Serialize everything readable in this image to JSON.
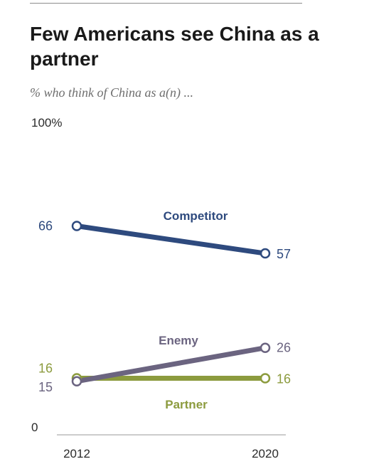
{
  "header": {
    "title": "Few Americans see China as a partner",
    "subtitle": "% who think of China as a(n) ..."
  },
  "chart_data": {
    "type": "line",
    "title": "Few Americans see China as a partner",
    "subtitle": "% who think of China as a(n) ...",
    "x": [
      "2012",
      "2020"
    ],
    "ylim": [
      0,
      100
    ],
    "yticks": [
      {
        "value": 100,
        "label": "100%"
      },
      {
        "value": 0,
        "label": "0"
      }
    ],
    "grid": false,
    "series": [
      {
        "name": "Competitor",
        "values": [
          66,
          57
        ],
        "labels": [
          "66",
          "57"
        ],
        "color": "#2e4a7e"
      },
      {
        "name": "Enemy",
        "values": [
          15,
          26
        ],
        "labels": [
          "15",
          "26"
        ],
        "color": "#6b6480"
      },
      {
        "name": "Partner",
        "values": [
          16,
          16
        ],
        "labels": [
          "16",
          "16"
        ],
        "color": "#8c9b3e"
      }
    ]
  }
}
